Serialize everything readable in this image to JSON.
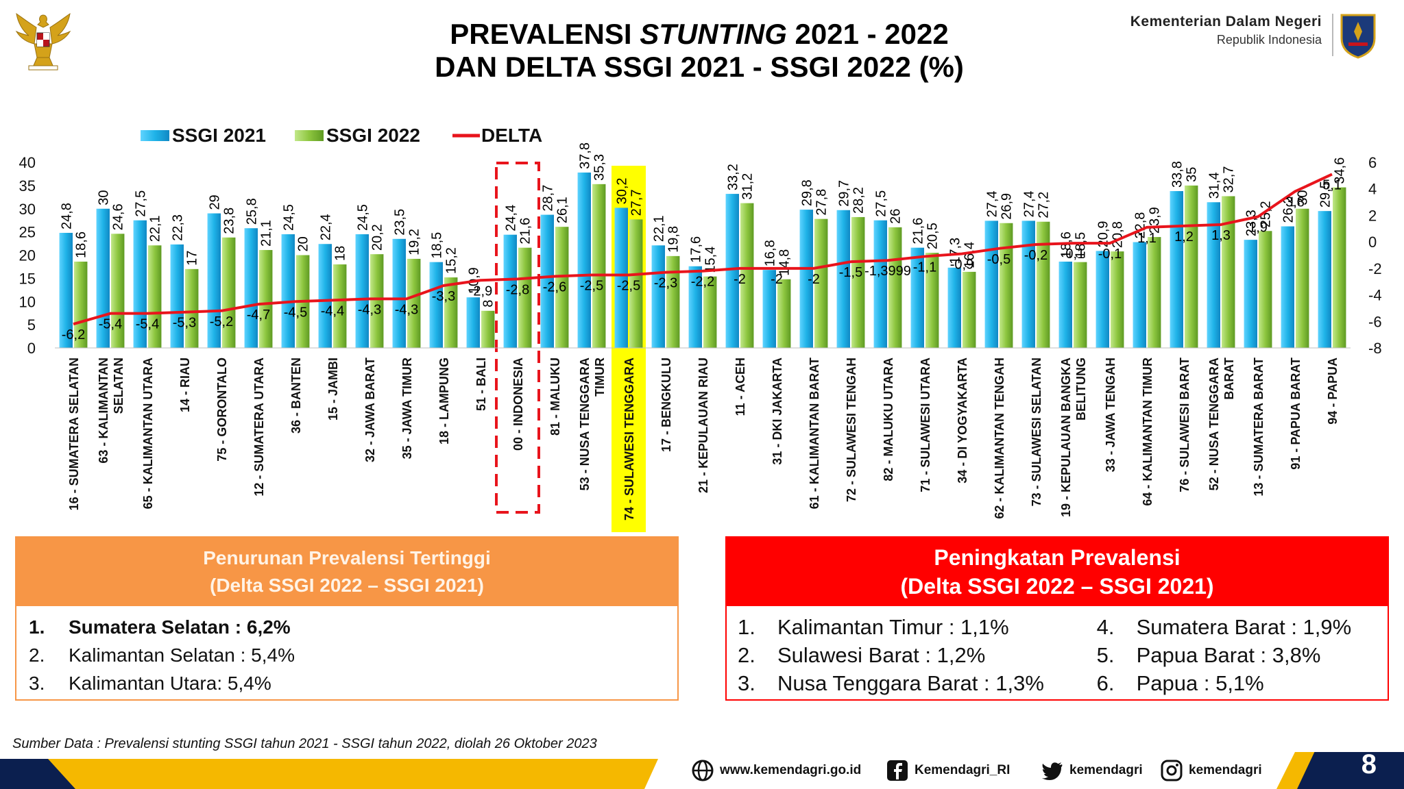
{
  "header": {
    "title_line1_a": "PREVALENSI ",
    "title_line1_b": "STUNTING",
    "title_line1_c": " 2021 - 2022",
    "title_line2": "DAN DELTA SSGI 2021 - SSGI 2022 (%)",
    "ministry_name": "Kementerian Dalam Negeri",
    "ministry_sub": "Republik Indonesia"
  },
  "colors": {
    "ssgi2021": "#1fb3e8",
    "ssgi2022": "#8dc63f",
    "delta": "#e8141c",
    "highlight": "#ffff00",
    "orange": "#f79646",
    "red": "#ff0000",
    "navy": "#0b1f4f",
    "gold": "#f5b800"
  },
  "chart_data": {
    "type": "bar",
    "legend": [
      "SSGI 2021",
      "SSGI 2022",
      "DELTA"
    ],
    "legend_position": "top-left",
    "ylim": [
      0,
      40
    ],
    "yticks": [
      0,
      5,
      10,
      15,
      20,
      25,
      30,
      35,
      40
    ],
    "y2lim": [
      -8,
      6
    ],
    "y2ticks": [
      -8,
      -6,
      -4,
      -2,
      0,
      2,
      4,
      6
    ],
    "grid": false,
    "categories": [
      "16 - SUMATERA SELATAN",
      "63 - KALIMANTAN SELATAN",
      "65 - KALIMANTAN UTARA",
      "14 - RIAU",
      "75 - GORONTALO",
      "12 - SUMATERA UTARA",
      "36 - BANTEN",
      "15 - JAMBI",
      "32 - JAWA BARAT",
      "35 - JAWA TIMUR",
      "18 - LAMPUNG",
      "51 - BALI",
      "00 - INDONESIA",
      "81 - MALUKU",
      "53 - NUSA TENGGARA TIMUR",
      "74 - SULAWESI TENGGARA",
      "17 - BENGKULU",
      "21 - KEPULAUAN RIAU",
      "11 - ACEH",
      "31 - DKI JAKARTA",
      "61 - KALIMANTAN BARAT",
      "72 - SULAWESI TENGAH",
      "82 - MALUKU UTARA",
      "71 - SULAWESI UTARA",
      "34 - DI YOGYAKARTA",
      "62 - KALIMANTAN TENGAH",
      "73 - SULAWESI SELATAN",
      "19 - KEPULAUAN BANGKA BELITUNG",
      "33 - JAWA TENGAH",
      "64 - KALIMANTAN TIMUR",
      "76 - SULAWESI BARAT",
      "52 - NUSA TENGGARA BARAT",
      "13 - SUMATERA BARAT",
      "91 - PAPUA BARAT",
      "94 - PAPUA"
    ],
    "category_lines": [
      [
        "16 - SUMATERA SELATAN"
      ],
      [
        "63 - KALIMANTAN",
        "SELATAN"
      ],
      [
        "65 - KALIMANTAN UTARA"
      ],
      [
        "14 - RIAU"
      ],
      [
        "75 - GORONTALO"
      ],
      [
        "12 - SUMATERA UTARA"
      ],
      [
        "36 - BANTEN"
      ],
      [
        "15 - JAMBI"
      ],
      [
        "32 - JAWA BARAT"
      ],
      [
        "35 - JAWA TIMUR"
      ],
      [
        "18 - LAMPUNG"
      ],
      [
        "51 - BALI"
      ],
      [
        "00 - INDONESIA"
      ],
      [
        "81 - MALUKU"
      ],
      [
        "53 - NUSA TENGGARA",
        "TIMUR"
      ],
      [
        "74 - SULAWESI TENGGARA"
      ],
      [
        "17 - BENGKULU"
      ],
      [
        "21 - KEPULAUAN RIAU"
      ],
      [
        "11 - ACEH"
      ],
      [
        "31 - DKI JAKARTA"
      ],
      [
        "61 - KALIMANTAN BARAT"
      ],
      [
        "72 - SULAWESI TENGAH"
      ],
      [
        "82 - MALUKU UTARA"
      ],
      [
        "71 - SULAWESI UTARA"
      ],
      [
        "34 - DI YOGYAKARTA"
      ],
      [
        "62 - KALIMANTAN TENGAH"
      ],
      [
        "73 - SULAWESI SELATAN"
      ],
      [
        "19 - KEPULAUAN BANGKA",
        "BELITUNG"
      ],
      [
        "33 - JAWA TENGAH"
      ],
      [
        "64 - KALIMANTAN TIMUR"
      ],
      [
        "76 - SULAWESI BARAT"
      ],
      [
        "52 - NUSA TENGGARA",
        "BARAT"
      ],
      [
        "13 - SUMATERA BARAT"
      ],
      [
        "91 - PAPUA BARAT"
      ],
      [
        "94 - PAPUA"
      ]
    ],
    "series": [
      {
        "name": "SSGI 2021",
        "type": "bar",
        "values": [
          24.8,
          30,
          27.5,
          22.3,
          29,
          25.8,
          24.5,
          22.4,
          24.5,
          23.5,
          18.5,
          10.9,
          24.4,
          28.7,
          37.8,
          30.2,
          22.1,
          17.6,
          33.2,
          16.8,
          29.8,
          29.7,
          27.5,
          21.6,
          17.3,
          27.4,
          27.4,
          18.6,
          20.9,
          22.8,
          33.8,
          31.4,
          23.3,
          26.2,
          29.5
        ],
        "labels": [
          "24,8",
          "30",
          "27,5",
          "22,3",
          "29",
          "25,8",
          "24,5",
          "22,4",
          "24,5",
          "23,5",
          "18,5",
          "10,9",
          "24,4",
          "28,7",
          "37,8",
          "30,2",
          "22,1",
          "17,6",
          "33,2",
          "16,8",
          "29,8",
          "29,7",
          "27,5",
          "21,6",
          "17,3",
          "27,4",
          "27,4",
          "18,6",
          "20,9",
          "22,8",
          "33,8",
          "31,4",
          "23,3",
          "26,2",
          "29,5"
        ]
      },
      {
        "name": "SSGI 2022",
        "type": "bar",
        "values": [
          18.6,
          24.6,
          22.1,
          17,
          23.8,
          21.1,
          20,
          18,
          20.2,
          19.2,
          15.2,
          8,
          21.6,
          26.1,
          35.3,
          27.7,
          19.8,
          15.4,
          31.2,
          14.8,
          27.8,
          28.2,
          26,
          20.5,
          16.4,
          26.9,
          27.2,
          18.5,
          20.8,
          23.9,
          35,
          32.7,
          25.2,
          30,
          34.6
        ],
        "labels": [
          "18,6",
          "24,6",
          "22,1",
          "17",
          "23,8",
          "21,1",
          "20",
          "18",
          "20,2",
          "19,2",
          "15,2",
          "8",
          "21,6",
          "26,1",
          "35,3",
          "27,7",
          "19,8",
          "15,4",
          "31,2",
          "14,8",
          "27,8",
          "28,2",
          "26",
          "20,5",
          "16,4",
          "26,9",
          "27,2",
          "18,5",
          "20,8",
          "23,9",
          "35",
          "32,7",
          "25,2",
          "30",
          "34,6"
        ]
      },
      {
        "name": "DELTA",
        "type": "line",
        "axis": "right",
        "values": [
          -6.2,
          -5.4,
          -5.4,
          -5.3,
          -5.2,
          -4.7,
          -4.5,
          -4.4,
          -4.3,
          -4.3,
          -3.3,
          -2.9,
          -2.8,
          -2.6,
          -2.5,
          -2.5,
          -2.3,
          -2.2,
          -2,
          -2,
          -2,
          -1.5,
          -1.3999,
          -1.1,
          -0.9,
          -0.5,
          -0.2,
          -0.1,
          -0.1,
          1.1,
          1.2,
          1.3,
          1.9,
          3.8,
          5.1
        ],
        "labels": [
          "-6,2",
          "-5,4",
          "-5,4",
          "-5,3",
          "-5,2",
          "-4,7",
          "-4,5",
          "-4,4",
          "-4,3",
          "-4,3",
          "-3,3",
          "-2,9",
          "-2,8",
          "-2,6",
          "-2,5",
          "-2,5",
          "-2,3",
          "-2,2",
          "-2",
          "-2",
          "-2",
          "-1,5",
          "-1,3999",
          "-1,1",
          "-0,9",
          "-0,5",
          "-0,2",
          "-0,1",
          "-0,1",
          "1,1",
          "1,2",
          "1,3",
          "1,9",
          "3,8",
          "5,1"
        ]
      }
    ],
    "dashed_box_index": 12,
    "highlight_index": 15
  },
  "left_box": {
    "title1": "Penurunan Prevalensi Tertinggi",
    "title2": "(Delta SSGI 2022 – SSGI 2021)",
    "items": [
      {
        "num": "1.",
        "text": "Sumatera Selatan : 6,2%"
      },
      {
        "num": "2.",
        "text": "Kalimantan Selatan : 5,4%"
      },
      {
        "num": "3.",
        "text": "Kalimantan Utara: 5,4%"
      }
    ]
  },
  "right_box": {
    "title1": "Peningkatan Prevalensi",
    "title2": "(Delta SSGI 2022 – SSGI 2021)",
    "items": [
      {
        "num": "1.",
        "text": "Kalimantan Timur : 1,1%"
      },
      {
        "num": "2.",
        "text": "Sulawesi Barat : 1,2%"
      },
      {
        "num": "3.",
        "text": "Nusa Tenggara Barat : 1,3%"
      },
      {
        "num": "4.",
        "text": "Sumatera Barat : 1,9%"
      },
      {
        "num": "5.",
        "text": "Papua Barat : 3,8%"
      },
      {
        "num": "6.",
        "text": "Papua : 5,1%"
      }
    ]
  },
  "source": "Sumber Data : Prevalensi stunting SSGI tahun 2021 - SSGI tahun 2022, diolah 26 Oktober 2023",
  "footer": {
    "website": "www.kemendagri.go.id",
    "facebook": "Kemendagri_RI",
    "twitter": "kemendagri",
    "instagram": "kemendagri",
    "page": "8"
  }
}
